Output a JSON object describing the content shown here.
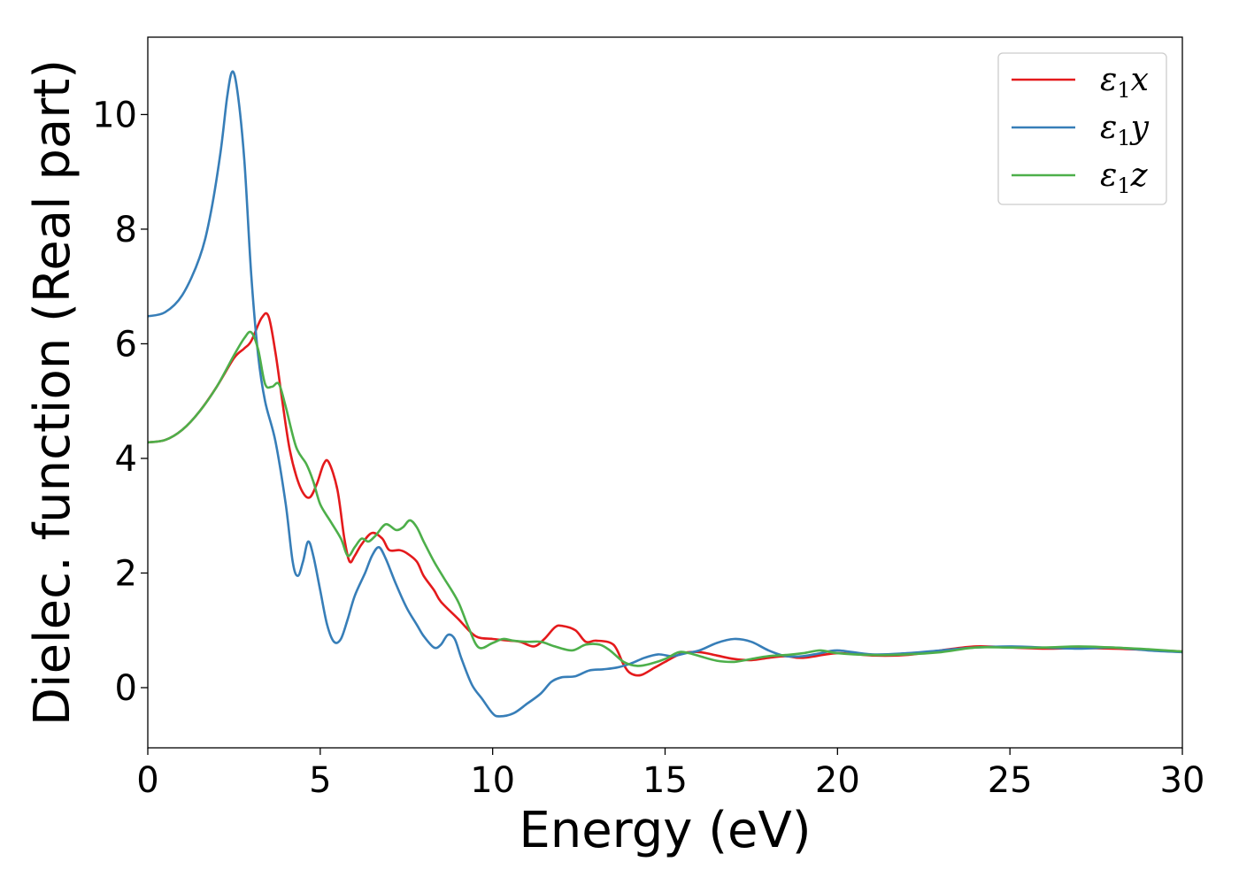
{
  "chart_data": {
    "type": "line",
    "xlabel": "Energy (eV)",
    "ylabel": "Dielec. function (Real part)",
    "xlim": [
      0,
      30
    ],
    "ylim": [
      -1.05,
      11.35
    ],
    "x_ticks": [
      0,
      5,
      10,
      15,
      20,
      25,
      30
    ],
    "y_ticks": [
      0,
      2,
      4,
      6,
      8,
      10
    ],
    "grid": false,
    "legend_position": "top-right",
    "series": [
      {
        "name": "ε1x",
        "legend": {
          "symbol": "ε",
          "sub": "1",
          "axis": "x"
        },
        "color": "#e41a1c",
        "points": [
          [
            0,
            4.28
          ],
          [
            0.5,
            4.32
          ],
          [
            1.0,
            4.5
          ],
          [
            1.5,
            4.82
          ],
          [
            2.0,
            5.25
          ],
          [
            2.5,
            5.75
          ],
          [
            2.8,
            5.92
          ],
          [
            3.0,
            6.05
          ],
          [
            3.3,
            6.45
          ],
          [
            3.5,
            6.48
          ],
          [
            3.7,
            5.85
          ],
          [
            3.9,
            5.0
          ],
          [
            4.1,
            4.2
          ],
          [
            4.3,
            3.7
          ],
          [
            4.5,
            3.4
          ],
          [
            4.7,
            3.32
          ],
          [
            4.9,
            3.55
          ],
          [
            5.1,
            3.9
          ],
          [
            5.25,
            3.93
          ],
          [
            5.5,
            3.45
          ],
          [
            5.7,
            2.6
          ],
          [
            5.85,
            2.2
          ],
          [
            6.0,
            2.3
          ],
          [
            6.2,
            2.5
          ],
          [
            6.5,
            2.7
          ],
          [
            6.8,
            2.6
          ],
          [
            7.0,
            2.4
          ],
          [
            7.3,
            2.4
          ],
          [
            7.5,
            2.35
          ],
          [
            7.8,
            2.2
          ],
          [
            8.0,
            1.95
          ],
          [
            8.3,
            1.7
          ],
          [
            8.5,
            1.5
          ],
          [
            9.0,
            1.2
          ],
          [
            9.5,
            0.9
          ],
          [
            10.0,
            0.85
          ],
          [
            10.5,
            0.82
          ],
          [
            10.8,
            0.8
          ],
          [
            11.2,
            0.72
          ],
          [
            11.5,
            0.85
          ],
          [
            11.8,
            1.05
          ],
          [
            12.0,
            1.08
          ],
          [
            12.4,
            1.0
          ],
          [
            12.7,
            0.8
          ],
          [
            13.0,
            0.82
          ],
          [
            13.5,
            0.75
          ],
          [
            13.8,
            0.4
          ],
          [
            14.0,
            0.25
          ],
          [
            14.3,
            0.22
          ],
          [
            14.7,
            0.35
          ],
          [
            15.0,
            0.45
          ],
          [
            15.5,
            0.6
          ],
          [
            16.0,
            0.62
          ],
          [
            16.5,
            0.56
          ],
          [
            17.0,
            0.5
          ],
          [
            17.5,
            0.48
          ],
          [
            18.0,
            0.52
          ],
          [
            18.5,
            0.55
          ],
          [
            19.0,
            0.52
          ],
          [
            20.0,
            0.6
          ],
          [
            21.0,
            0.56
          ],
          [
            22.0,
            0.57
          ],
          [
            23.0,
            0.65
          ],
          [
            24.0,
            0.72
          ],
          [
            25.0,
            0.7
          ],
          [
            26.0,
            0.68
          ],
          [
            27.0,
            0.69
          ],
          [
            28.0,
            0.68
          ],
          [
            29.0,
            0.66
          ],
          [
            30.0,
            0.63
          ]
        ]
      },
      {
        "name": "ε1y",
        "legend": {
          "symbol": "ε",
          "sub": "1",
          "axis": "y"
        },
        "color": "#377eb8",
        "points": [
          [
            0,
            6.48
          ],
          [
            0.5,
            6.55
          ],
          [
            1.0,
            6.85
          ],
          [
            1.5,
            7.5
          ],
          [
            1.8,
            8.2
          ],
          [
            2.1,
            9.3
          ],
          [
            2.3,
            10.3
          ],
          [
            2.45,
            10.75
          ],
          [
            2.6,
            10.4
          ],
          [
            2.8,
            9.2
          ],
          [
            3.0,
            7.2
          ],
          [
            3.2,
            5.8
          ],
          [
            3.4,
            5.0
          ],
          [
            3.7,
            4.3
          ],
          [
            4.0,
            3.2
          ],
          [
            4.2,
            2.2
          ],
          [
            4.35,
            1.95
          ],
          [
            4.5,
            2.2
          ],
          [
            4.65,
            2.55
          ],
          [
            4.8,
            2.3
          ],
          [
            5.0,
            1.7
          ],
          [
            5.2,
            1.1
          ],
          [
            5.4,
            0.8
          ],
          [
            5.6,
            0.85
          ],
          [
            5.8,
            1.2
          ],
          [
            6.0,
            1.6
          ],
          [
            6.3,
            2.0
          ],
          [
            6.5,
            2.3
          ],
          [
            6.7,
            2.45
          ],
          [
            6.9,
            2.25
          ],
          [
            7.2,
            1.8
          ],
          [
            7.5,
            1.4
          ],
          [
            7.8,
            1.1
          ],
          [
            8.0,
            0.9
          ],
          [
            8.3,
            0.7
          ],
          [
            8.5,
            0.75
          ],
          [
            8.7,
            0.92
          ],
          [
            8.9,
            0.85
          ],
          [
            9.1,
            0.5
          ],
          [
            9.4,
            0.05
          ],
          [
            9.7,
            -0.2
          ],
          [
            10.0,
            -0.45
          ],
          [
            10.2,
            -0.5
          ],
          [
            10.6,
            -0.45
          ],
          [
            11.0,
            -0.28
          ],
          [
            11.4,
            -0.1
          ],
          [
            11.7,
            0.1
          ],
          [
            12.0,
            0.18
          ],
          [
            12.4,
            0.2
          ],
          [
            12.8,
            0.3
          ],
          [
            13.2,
            0.32
          ],
          [
            13.6,
            0.35
          ],
          [
            14.0,
            0.42
          ],
          [
            14.4,
            0.52
          ],
          [
            14.8,
            0.58
          ],
          [
            15.2,
            0.55
          ],
          [
            15.6,
            0.6
          ],
          [
            16.0,
            0.65
          ],
          [
            16.5,
            0.78
          ],
          [
            17.0,
            0.85
          ],
          [
            17.5,
            0.8
          ],
          [
            18.0,
            0.65
          ],
          [
            18.5,
            0.55
          ],
          [
            19.0,
            0.55
          ],
          [
            19.5,
            0.6
          ],
          [
            20.0,
            0.65
          ],
          [
            21.0,
            0.58
          ],
          [
            22.0,
            0.6
          ],
          [
            23.0,
            0.65
          ],
          [
            24.0,
            0.7
          ],
          [
            25.0,
            0.72
          ],
          [
            26.0,
            0.7
          ],
          [
            27.0,
            0.68
          ],
          [
            28.0,
            0.7
          ],
          [
            29.0,
            0.65
          ],
          [
            30.0,
            0.62
          ]
        ]
      },
      {
        "name": "ε1z",
        "legend": {
          "symbol": "ε",
          "sub": "1",
          "axis": "z"
        },
        "color": "#4daf4a",
        "points": [
          [
            0,
            4.28
          ],
          [
            0.5,
            4.32
          ],
          [
            1.0,
            4.5
          ],
          [
            1.5,
            4.82
          ],
          [
            2.0,
            5.25
          ],
          [
            2.5,
            5.8
          ],
          [
            2.8,
            6.1
          ],
          [
            3.0,
            6.2
          ],
          [
            3.2,
            5.9
          ],
          [
            3.4,
            5.3
          ],
          [
            3.6,
            5.25
          ],
          [
            3.8,
            5.3
          ],
          [
            4.0,
            4.9
          ],
          [
            4.3,
            4.2
          ],
          [
            4.6,
            3.9
          ],
          [
            4.8,
            3.6
          ],
          [
            5.0,
            3.2
          ],
          [
            5.3,
            2.9
          ],
          [
            5.6,
            2.6
          ],
          [
            5.8,
            2.3
          ],
          [
            6.0,
            2.45
          ],
          [
            6.2,
            2.6
          ],
          [
            6.4,
            2.55
          ],
          [
            6.6,
            2.65
          ],
          [
            6.9,
            2.85
          ],
          [
            7.2,
            2.75
          ],
          [
            7.4,
            2.8
          ],
          [
            7.6,
            2.92
          ],
          [
            7.8,
            2.8
          ],
          [
            8.0,
            2.55
          ],
          [
            8.3,
            2.2
          ],
          [
            8.6,
            1.9
          ],
          [
            9.0,
            1.5
          ],
          [
            9.3,
            1.05
          ],
          [
            9.6,
            0.7
          ],
          [
            10.0,
            0.78
          ],
          [
            10.3,
            0.85
          ],
          [
            10.6,
            0.82
          ],
          [
            11.0,
            0.8
          ],
          [
            11.4,
            0.8
          ],
          [
            11.8,
            0.72
          ],
          [
            12.3,
            0.65
          ],
          [
            12.7,
            0.75
          ],
          [
            13.1,
            0.75
          ],
          [
            13.4,
            0.65
          ],
          [
            13.8,
            0.45
          ],
          [
            14.2,
            0.38
          ],
          [
            14.6,
            0.42
          ],
          [
            15.0,
            0.5
          ],
          [
            15.4,
            0.62
          ],
          [
            15.7,
            0.6
          ],
          [
            16.0,
            0.55
          ],
          [
            16.5,
            0.47
          ],
          [
            17.0,
            0.45
          ],
          [
            17.5,
            0.5
          ],
          [
            18.0,
            0.55
          ],
          [
            18.5,
            0.57
          ],
          [
            19.0,
            0.6
          ],
          [
            19.5,
            0.65
          ],
          [
            20.0,
            0.6
          ],
          [
            21.0,
            0.57
          ],
          [
            22.0,
            0.58
          ],
          [
            23.0,
            0.62
          ],
          [
            24.0,
            0.7
          ],
          [
            25.0,
            0.7
          ],
          [
            26.0,
            0.7
          ],
          [
            27.0,
            0.72
          ],
          [
            28.0,
            0.7
          ],
          [
            29.0,
            0.67
          ],
          [
            30.0,
            0.63
          ]
        ]
      }
    ]
  }
}
